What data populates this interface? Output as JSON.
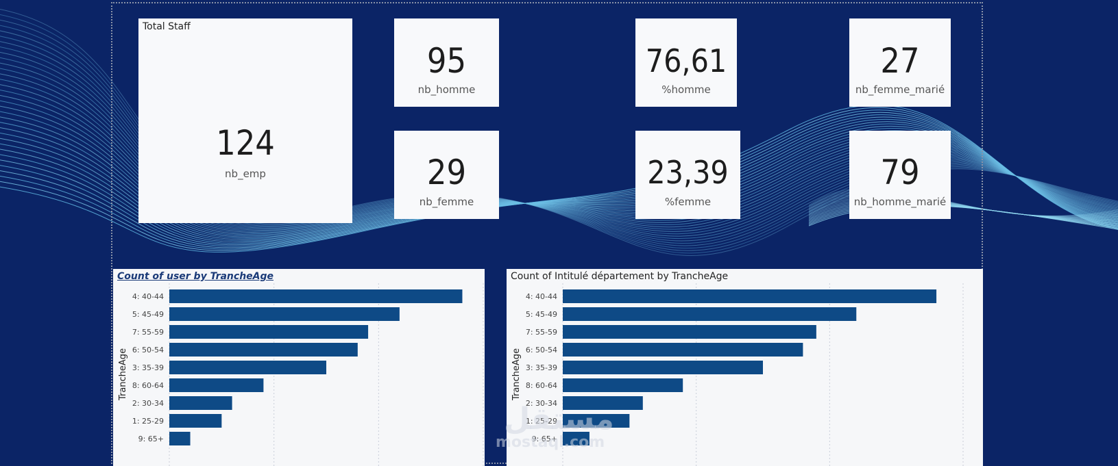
{
  "kpi": {
    "total": {
      "title": "Total Staff",
      "value": "124",
      "label": "nb_emp"
    },
    "nb_homme": {
      "value": "95",
      "label": "nb_homme"
    },
    "nb_femme": {
      "value": "29",
      "label": "nb_femme"
    },
    "pct_homme": {
      "value": "76,61",
      "label": "%homme"
    },
    "pct_femme": {
      "value": "23,39",
      "label": "%femme"
    },
    "femme_marie": {
      "value": "27",
      "label": "nb_femme_marié"
    },
    "homme_marie": {
      "value": "79",
      "label": "nb_homme_marié"
    }
  },
  "colors": {
    "bar": "#0e4a86",
    "background": "#0b2466",
    "card": "#f8f9fb"
  },
  "chart_data": [
    {
      "type": "bar",
      "orientation": "horizontal",
      "title": "Count of user by TrancheAge",
      "ylabel": "TrancheAge",
      "categories": [
        "4: 40-44",
        "5: 45-49",
        "7: 55-59",
        "6: 50-54",
        "3: 35-39",
        "8: 60-64",
        "2: 30-34",
        "1: 25-29",
        "9: 65+"
      ],
      "values": [
        28,
        22,
        19,
        18,
        15,
        9,
        6,
        5,
        2
      ],
      "xlim": [
        0,
        30
      ],
      "grid": true
    },
    {
      "type": "bar",
      "orientation": "horizontal",
      "title": "Count of Intitulé département by TrancheAge",
      "ylabel": "TrancheAge",
      "categories": [
        "4: 40-44",
        "5: 45-49",
        "7: 55-59",
        "6: 50-54",
        "3: 35-39",
        "8: 60-64",
        "2: 30-34",
        "1: 25-29",
        "9: 65+"
      ],
      "values": [
        28,
        22,
        19,
        18,
        15,
        9,
        6,
        5,
        2
      ],
      "xlim": [
        0,
        30
      ],
      "grid": true
    }
  ],
  "watermark": {
    "arabic": "مستقل",
    "latin": "mostaql.com"
  }
}
